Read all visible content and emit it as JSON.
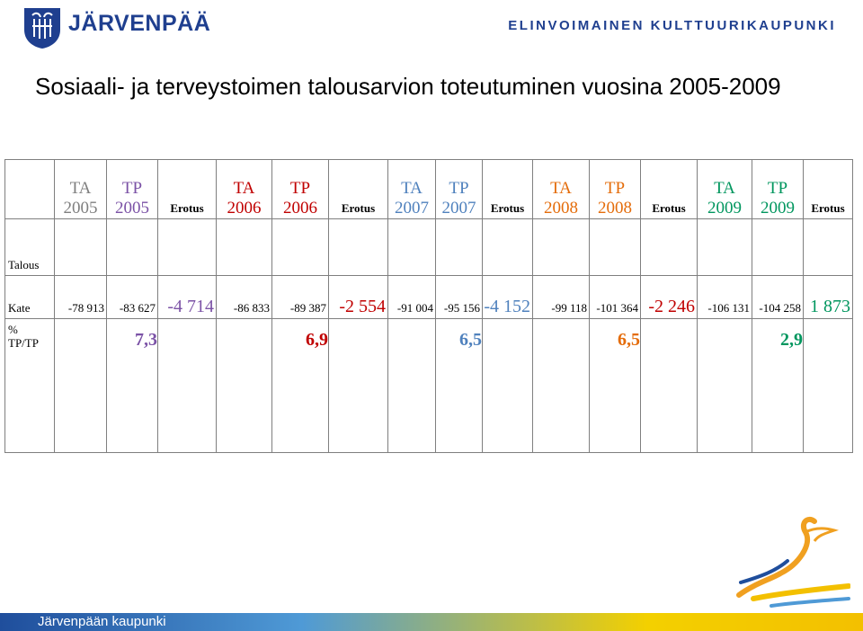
{
  "header": {
    "brand": "JÄRVENPÄÄ",
    "tagline": "ELINVOIMAINEN KULTTUURIKAUPUNKI",
    "logo_icon": "coat-of-arms-icon"
  },
  "title": "Sosiaali- ja terveystoimen talousarvion toteutuminen vuosina 2005-2009",
  "table": {
    "columns": [
      {
        "line1": "TA",
        "line2": "2005",
        "color": "#7f7f7f"
      },
      {
        "line1": "TP",
        "line2": "2005",
        "color": "#7b52a6"
      },
      {
        "line1": "Erotus",
        "line2": "",
        "color": "#000000"
      },
      {
        "line1": "TA",
        "line2": "2006",
        "color": "#c00000"
      },
      {
        "line1": "TP",
        "line2": "2006",
        "color": "#c00000"
      },
      {
        "line1": "Erotus",
        "line2": "",
        "color": "#000000"
      },
      {
        "line1": "TA",
        "line2": "2007",
        "color": "#4f81bd"
      },
      {
        "line1": "TP",
        "line2": "2007",
        "color": "#4f81bd"
      },
      {
        "line1": "Erotus",
        "line2": "",
        "color": "#000000"
      },
      {
        "line1": "TA",
        "line2": "2008",
        "color": "#e46c0a"
      },
      {
        "line1": "TP",
        "line2": "2008",
        "color": "#e46c0a"
      },
      {
        "line1": "Erotus",
        "line2": "",
        "color": "#000000"
      },
      {
        "line1": "TA",
        "line2": "2009",
        "color": "#00965e"
      },
      {
        "line1": "TP",
        "line2": "2009",
        "color": "#00965e"
      },
      {
        "line1": "Erotus",
        "line2": "",
        "color": "#000000"
      }
    ],
    "talous_label": "Talous",
    "kate_label": "Kate",
    "kate": [
      "-78 913",
      "-83 627",
      "-4 714",
      "-86 833",
      "-89 387",
      "-2 554",
      "-91 004",
      "-95 156",
      "-4 152",
      "-99 118",
      "-101 364",
      "-2 246",
      "-106 131",
      "-104 258",
      "1 873"
    ],
    "pct_label_1": "%",
    "pct_label_2": "TP/TP",
    "pct": [
      "7,3",
      "6,9",
      "6,5",
      "6,5",
      "2,9"
    ]
  },
  "footer": {
    "text": "Järvenpään kaupunki",
    "band_colors": [
      "#1f4e9c",
      "#4f9ad6",
      "#f3d000"
    ]
  },
  "decor": {
    "bird_icon": "bird-logo-icon"
  }
}
